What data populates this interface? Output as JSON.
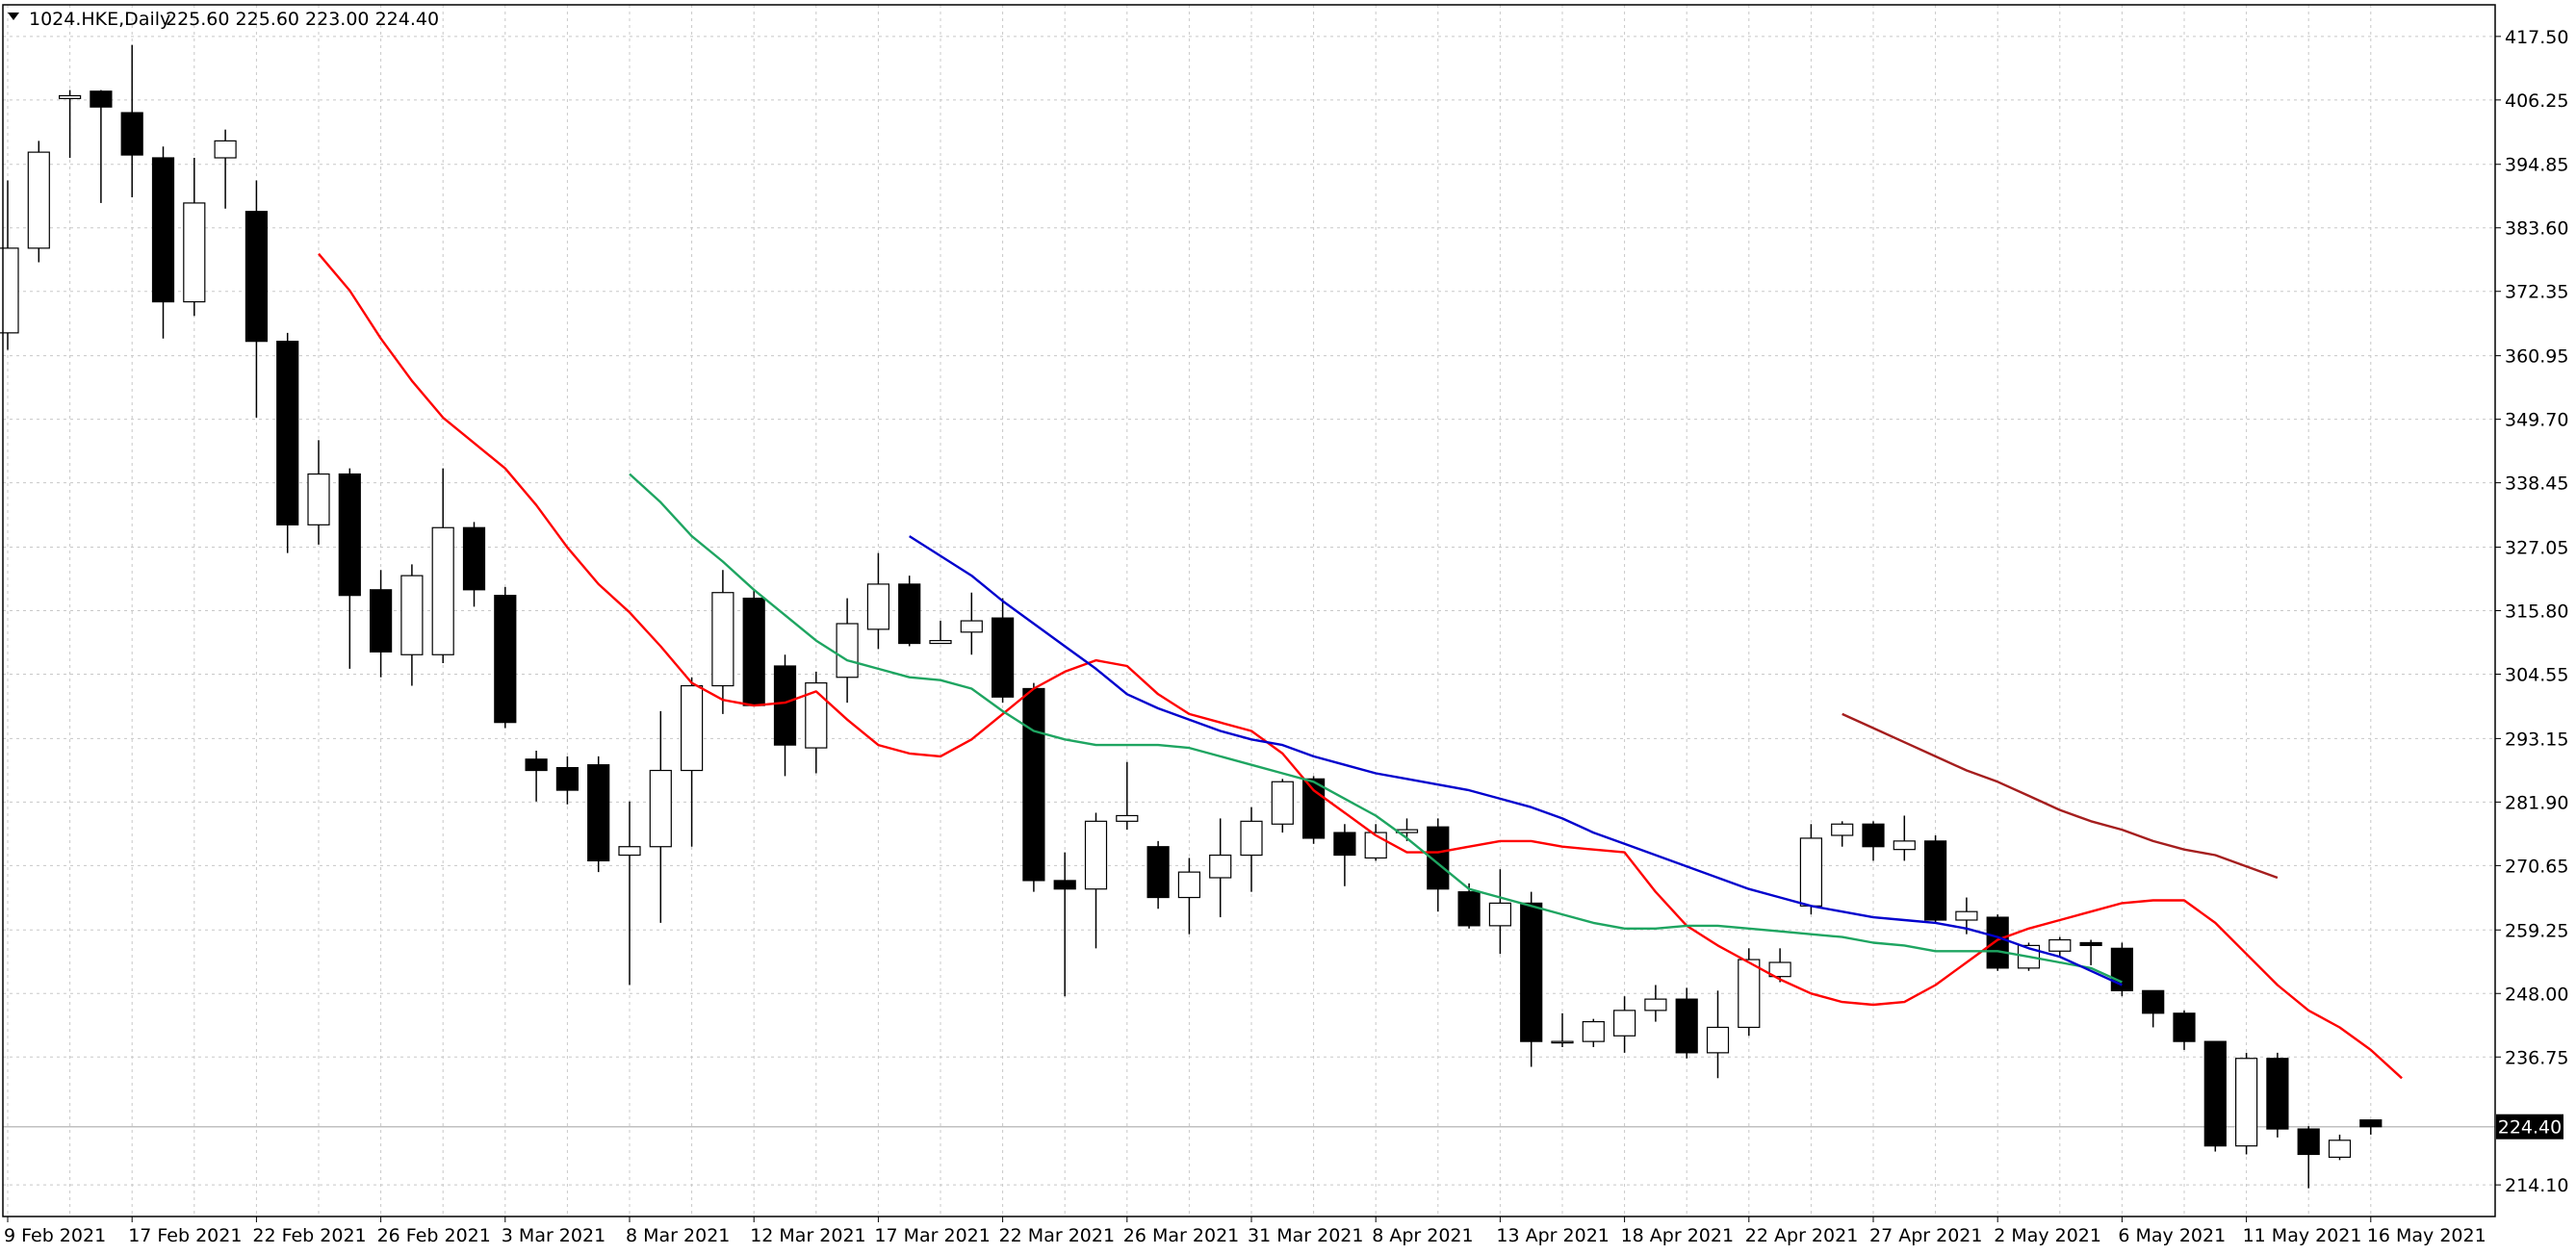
{
  "header": {
    "symbol": "1024.HKE,Daily",
    "ohlc": "225.60 225.60 223.00 224.40",
    "menu_icon": "triangle-down-icon"
  },
  "current_price_label": "224.40",
  "colors": {
    "background": "#ffffff",
    "grid": "#c8c8c8",
    "candle_stroke": "#000000",
    "bull_fill": "#ffffff",
    "bear_fill": "#000000",
    "price_line": "#c0c0c0",
    "price_tag_bg": "#000000",
    "price_tag_text": "#ffffff"
  },
  "chart_data": {
    "type": "candlestick",
    "grid": true,
    "y_axis_position": "right",
    "ylim": [
      208.5,
      423.1
    ],
    "y_ticks": [
      "417.50",
      "406.25",
      "394.85",
      "383.60",
      "372.35",
      "360.95",
      "349.70",
      "338.45",
      "327.05",
      "315.80",
      "304.55",
      "293.15",
      "281.90",
      "270.65",
      "259.25",
      "248.00",
      "236.75",
      "214.10"
    ],
    "x_ticks": [
      {
        "index": 0,
        "label": "9 Feb 2021"
      },
      {
        "index": 4,
        "label": "17 Feb 2021"
      },
      {
        "index": 8,
        "label": "22 Feb 2021"
      },
      {
        "index": 12,
        "label": "26 Feb 2021"
      },
      {
        "index": 16,
        "label": "3 Mar 2021"
      },
      {
        "index": 20,
        "label": "8 Mar 2021"
      },
      {
        "index": 24,
        "label": "12 Mar 2021"
      },
      {
        "index": 28,
        "label": "17 Mar 2021"
      },
      {
        "index": 32,
        "label": "22 Mar 2021"
      },
      {
        "index": 36,
        "label": "26 Mar 2021"
      },
      {
        "index": 40,
        "label": "31 Mar 2021"
      },
      {
        "index": 44,
        "label": "8 Apr 2021"
      },
      {
        "index": 48,
        "label": "13 Apr 2021"
      },
      {
        "index": 52,
        "label": "18 Apr 2021"
      },
      {
        "index": 56,
        "label": "22 Apr 2021"
      },
      {
        "index": 60,
        "label": "27 Apr 2021"
      },
      {
        "index": 64,
        "label": "2 May 2021"
      },
      {
        "index": 68,
        "label": "6 May 2021"
      },
      {
        "index": 72,
        "label": "11 May 2021"
      },
      {
        "index": 76,
        "label": "16 May 2021"
      }
    ],
    "candles": [
      {
        "o": 365.0,
        "h": 392.0,
        "l": 362.0,
        "c": 380.0
      },
      {
        "o": 380.0,
        "h": 399.0,
        "l": 377.5,
        "c": 397.0
      },
      {
        "o": 406.5,
        "h": 408.0,
        "l": 396.0,
        "c": 407.0
      },
      {
        "o": 407.8,
        "h": 408.0,
        "l": 388.0,
        "c": 405.0
      },
      {
        "o": 404.0,
        "h": 416.0,
        "l": 389.0,
        "c": 396.5
      },
      {
        "o": 396.0,
        "h": 398.0,
        "l": 364.0,
        "c": 370.5
      },
      {
        "o": 370.5,
        "h": 396.0,
        "l": 368.0,
        "c": 388.0
      },
      {
        "o": 396.0,
        "h": 401.0,
        "l": 387.0,
        "c": 399.0
      },
      {
        "o": 386.5,
        "h": 392.0,
        "l": 350.0,
        "c": 363.5
      },
      {
        "o": 363.5,
        "h": 365.0,
        "l": 326.0,
        "c": 331.0
      },
      {
        "o": 331.0,
        "h": 346.0,
        "l": 327.5,
        "c": 340.0
      },
      {
        "o": 340.0,
        "h": 341.0,
        "l": 305.5,
        "c": 318.5
      },
      {
        "o": 319.5,
        "h": 323.0,
        "l": 304.0,
        "c": 308.5
      },
      {
        "o": 308.0,
        "h": 324.0,
        "l": 302.5,
        "c": 322.0
      },
      {
        "o": 308.0,
        "h": 341.0,
        "l": 306.5,
        "c": 330.5
      },
      {
        "o": 330.5,
        "h": 331.5,
        "l": 316.5,
        "c": 319.5
      },
      {
        "o": 318.5,
        "h": 320.0,
        "l": 295.0,
        "c": 296.0
      },
      {
        "o": 289.5,
        "h": 291.0,
        "l": 282.0,
        "c": 287.5
      },
      {
        "o": 288.0,
        "h": 290.0,
        "l": 281.5,
        "c": 284.0
      },
      {
        "o": 288.5,
        "h": 290.0,
        "l": 269.5,
        "c": 271.5
      },
      {
        "o": 272.5,
        "h": 282.0,
        "l": 249.5,
        "c": 274.0
      },
      {
        "o": 274.0,
        "h": 298.0,
        "l": 260.5,
        "c": 287.5
      },
      {
        "o": 287.5,
        "h": 304.0,
        "l": 274.0,
        "c": 302.5
      },
      {
        "o": 302.5,
        "h": 323.0,
        "l": 297.5,
        "c": 319.0
      },
      {
        "o": 318.0,
        "h": 319.5,
        "l": 299.0,
        "c": 299.0
      },
      {
        "o": 306.0,
        "h": 308.0,
        "l": 286.5,
        "c": 292.0
      },
      {
        "o": 291.5,
        "h": 305.0,
        "l": 287.0,
        "c": 303.0
      },
      {
        "o": 304.0,
        "h": 318.0,
        "l": 299.5,
        "c": 313.5
      },
      {
        "o": 312.5,
        "h": 326.0,
        "l": 309.0,
        "c": 320.5
      },
      {
        "o": 320.5,
        "h": 322.0,
        "l": 309.5,
        "c": 310.0
      },
      {
        "o": 310.0,
        "h": 314.0,
        "l": 310.0,
        "c": 310.5
      },
      {
        "o": 312.0,
        "h": 319.0,
        "l": 308.0,
        "c": 314.0
      },
      {
        "o": 314.5,
        "h": 318.0,
        "l": 299.5,
        "c": 300.5
      },
      {
        "o": 302.0,
        "h": 303.0,
        "l": 266.0,
        "c": 268.0
      },
      {
        "o": 268.0,
        "h": 273.0,
        "l": 247.5,
        "c": 266.5
      },
      {
        "o": 266.5,
        "h": 280.0,
        "l": 256.0,
        "c": 278.5
      },
      {
        "o": 278.5,
        "h": 289.0,
        "l": 277.0,
        "c": 279.5
      },
      {
        "o": 274.0,
        "h": 275.0,
        "l": 263.0,
        "c": 265.0
      },
      {
        "o": 265.0,
        "h": 272.0,
        "l": 258.5,
        "c": 269.5
      },
      {
        "o": 268.5,
        "h": 279.0,
        "l": 261.5,
        "c": 272.5
      },
      {
        "o": 272.5,
        "h": 281.0,
        "l": 266.0,
        "c": 278.5
      },
      {
        "o": 278.0,
        "h": 286.0,
        "l": 276.5,
        "c": 285.5
      },
      {
        "o": 286.0,
        "h": 286.5,
        "l": 274.5,
        "c": 275.5
      },
      {
        "o": 276.5,
        "h": 278.0,
        "l": 267.0,
        "c": 272.5
      },
      {
        "o": 272.0,
        "h": 278.0,
        "l": 271.5,
        "c": 276.5
      },
      {
        "o": 276.5,
        "h": 279.0,
        "l": 275.0,
        "c": 277.0
      },
      {
        "o": 277.5,
        "h": 279.0,
        "l": 262.5,
        "c": 266.5
      },
      {
        "o": 266.0,
        "h": 267.5,
        "l": 259.5,
        "c": 260.0
      },
      {
        "o": 260.0,
        "h": 270.0,
        "l": 255.0,
        "c": 264.0
      },
      {
        "o": 264.0,
        "h": 266.0,
        "l": 235.0,
        "c": 239.5
      },
      {
        "o": 239.5,
        "h": 244.5,
        "l": 238.5,
        "c": 239.5
      },
      {
        "o": 239.5,
        "h": 243.5,
        "l": 238.5,
        "c": 243.0
      },
      {
        "o": 240.5,
        "h": 247.5,
        "l": 237.5,
        "c": 245.0
      },
      {
        "o": 245.0,
        "h": 249.5,
        "l": 243.0,
        "c": 247.0
      },
      {
        "o": 247.0,
        "h": 249.0,
        "l": 236.5,
        "c": 237.5
      },
      {
        "o": 237.5,
        "h": 248.5,
        "l": 233.0,
        "c": 242.0
      },
      {
        "o": 242.0,
        "h": 256.0,
        "l": 240.5,
        "c": 254.0
      },
      {
        "o": 251.0,
        "h": 256.0,
        "l": 250.0,
        "c": 253.5
      },
      {
        "o": 263.5,
        "h": 278.0,
        "l": 262.0,
        "c": 275.5
      },
      {
        "o": 276.0,
        "h": 278.5,
        "l": 274.0,
        "c": 278.0
      },
      {
        "o": 278.0,
        "h": 278.5,
        "l": 271.5,
        "c": 274.0
      },
      {
        "o": 273.5,
        "h": 279.5,
        "l": 271.5,
        "c": 275.0
      },
      {
        "o": 275.0,
        "h": 276.0,
        "l": 260.5,
        "c": 261.0
      },
      {
        "o": 261.0,
        "h": 265.0,
        "l": 258.5,
        "c": 262.5
      },
      {
        "o": 261.5,
        "h": 262.0,
        "l": 252.0,
        "c": 252.5
      },
      {
        "o": 252.5,
        "h": 257.0,
        "l": 252.0,
        "c": 256.5
      },
      {
        "o": 255.5,
        "h": 258.0,
        "l": 254.5,
        "c": 257.5
      },
      {
        "o": 257.0,
        "h": 257.5,
        "l": 253.0,
        "c": 256.5
      },
      {
        "o": 256.0,
        "h": 257.0,
        "l": 247.5,
        "c": 248.5
      },
      {
        "o": 248.5,
        "h": 248.5,
        "l": 242.0,
        "c": 244.5
      },
      {
        "o": 244.5,
        "h": 245.0,
        "l": 238.0,
        "c": 239.5
      },
      {
        "o": 239.5,
        "h": 239.5,
        "l": 220.0,
        "c": 221.0
      },
      {
        "o": 221.0,
        "h": 237.5,
        "l": 219.5,
        "c": 236.5
      },
      {
        "o": 236.5,
        "h": 237.5,
        "l": 222.5,
        "c": 224.0
      },
      {
        "o": 224.0,
        "h": 224.5,
        "l": 213.5,
        "c": 219.5
      },
      {
        "o": 219.0,
        "h": 223.0,
        "l": 218.5,
        "c": 222.0
      },
      {
        "o": 225.6,
        "h": 225.6,
        "l": 223.0,
        "c": 224.4
      }
    ],
    "series": [
      {
        "color": "#ff0000",
        "start_index": 10,
        "values": [
          379.0,
          372.5,
          364.0,
          356.5,
          350.0,
          345.5,
          341.0,
          334.5,
          327.0,
          320.5,
          315.5,
          309.5,
          303.0,
          300.0,
          299.0,
          299.5,
          301.5,
          296.5,
          292.0,
          290.5,
          290.0,
          293.0,
          297.5,
          302.0,
          305.0,
          307.0,
          306.0,
          301.0,
          297.5,
          296.0,
          294.5,
          290.5,
          284.0,
          280.0,
          276.0,
          273.0,
          273.0,
          274.0,
          275.0,
          275.0,
          274.0,
          273.5,
          273.0,
          266.0,
          260.0,
          256.5,
          253.5,
          250.5,
          248.0,
          246.5,
          246.0,
          246.5,
          249.5,
          253.5,
          257.5,
          259.5,
          261.0,
          262.5,
          264.0,
          264.5,
          264.5,
          260.5,
          255.0,
          249.5,
          245.0,
          242.0,
          238.0,
          233.0
        ]
      },
      {
        "color": "#1ea561",
        "start_index": 20,
        "values": [
          340.0,
          335.0,
          329.0,
          324.5,
          319.5,
          315.0,
          310.5,
          307.0,
          305.5,
          304.0,
          303.5,
          302.0,
          298.0,
          294.5,
          293.0,
          292.0,
          292.0,
          292.0,
          291.5,
          290.0,
          288.5,
          287.0,
          285.5,
          282.5,
          279.5,
          275.5,
          271.0,
          266.5,
          265.0,
          263.5,
          262.0,
          260.5,
          259.5,
          259.5,
          260.0,
          260.0,
          259.5,
          259.0,
          258.5,
          258.0,
          257.0,
          256.5,
          255.5,
          255.5,
          255.5,
          254.5,
          253.5,
          252.5,
          250.0
        ]
      },
      {
        "color": "#0000cd",
        "start_index": 29,
        "values": [
          329.0,
          325.5,
          322.0,
          317.5,
          313.5,
          309.5,
          305.5,
          301.0,
          298.5,
          296.5,
          294.5,
          293.0,
          292.0,
          290.0,
          288.5,
          287.0,
          286.0,
          285.0,
          284.0,
          282.5,
          281.0,
          279.0,
          276.5,
          274.5,
          272.5,
          270.5,
          268.5,
          266.5,
          265.0,
          263.5,
          262.5,
          261.5,
          261.0,
          260.5,
          259.5,
          258.0,
          256.0,
          254.5,
          252.0,
          249.5
        ]
      },
      {
        "color": "#a51e1e",
        "start_index": 59,
        "values": [
          297.5,
          295.0,
          292.5,
          290.0,
          287.5,
          285.5,
          283.0,
          280.5,
          278.5,
          277.0,
          275.0,
          273.5,
          272.5,
          270.5,
          268.5
        ]
      }
    ]
  }
}
